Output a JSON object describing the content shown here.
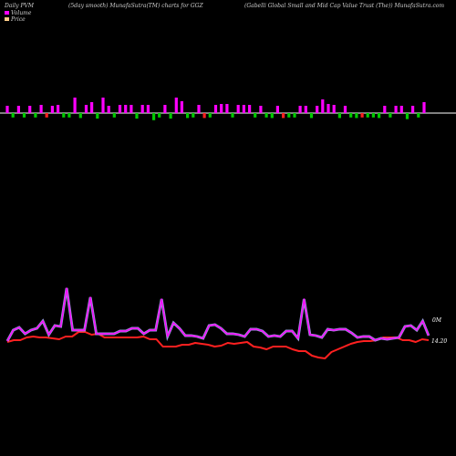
{
  "header": {
    "t1": "Daily PVM",
    "t2": "(5day smooth) MunafaSutra(TM) charts for GGZ",
    "t3": "(Gabelli  Global Small and Mid Cap Value  Trust    (The)) MunafaSutra.com"
  },
  "legend": [
    {
      "label": "Volume",
      "color": "#ff00ff"
    },
    {
      "label": "Price",
      "color": "#ffcc88"
    }
  ],
  "colors": {
    "up": "#ff00ff",
    "down": "#00cc00",
    "price": "#ff2020",
    "pvm": "#ff00ff",
    "pvm_fill": "#9999dd",
    "axis": "#ffffff"
  },
  "chart_data": [
    {
      "type": "bar",
      "name": "PVM bars",
      "values": [
        8,
        8,
        8,
        8,
        8,
        8,
        9,
        8,
        8,
        9,
        8,
        8,
        17,
        9,
        9,
        12,
        10,
        17,
        8,
        8,
        9,
        9,
        9,
        10,
        9,
        9,
        13,
        8,
        9,
        10,
        17,
        13,
        9,
        8,
        9,
        9,
        8,
        9,
        10,
        10,
        8,
        9,
        9,
        9,
        8,
        8,
        8,
        9,
        8,
        9,
        8,
        8,
        8,
        8,
        9,
        8,
        15,
        10,
        9,
        9,
        8,
        8,
        9,
        8,
        8,
        8,
        9,
        8,
        8,
        8,
        8,
        11,
        8,
        8,
        12
      ],
      "signs": [
        1,
        -1,
        1,
        -1,
        1,
        -1,
        1,
        -1,
        1,
        1,
        -1,
        -1,
        1,
        -1,
        1,
        1,
        -1,
        1,
        1,
        -1,
        1,
        1,
        1,
        -1,
        1,
        1,
        -1,
        -1,
        1,
        -1,
        1,
        1,
        -1,
        -1,
        1,
        -1,
        -1,
        1,
        1,
        1,
        -1,
        1,
        1,
        1,
        -1,
        1,
        -1,
        -1,
        1,
        -1,
        -1,
        -1,
        1,
        1,
        -1,
        1,
        1,
        1,
        1,
        -1,
        1,
        -1,
        -1,
        -1,
        -1,
        -1,
        -1,
        1,
        -1,
        1,
        1,
        -1,
        1,
        -1,
        1
      ]
    },
    {
      "type": "line",
      "name": "PVM",
      "values": [
        374,
        362,
        359,
        366,
        362,
        360,
        352,
        367,
        357,
        358,
        316,
        362,
        362,
        362,
        326,
        366,
        366,
        366,
        366,
        363,
        363,
        360,
        360,
        366,
        362,
        362,
        328,
        369,
        354,
        360,
        368,
        368,
        369,
        371,
        357,
        356,
        360,
        366,
        366,
        367,
        369,
        361,
        361,
        363,
        369,
        368,
        369,
        363,
        363,
        371,
        328,
        367,
        368,
        370,
        361,
        362,
        361,
        361,
        365,
        370,
        369,
        369,
        373,
        371,
        372,
        371,
        370,
        358,
        357,
        362,
        352,
        368
      ],
      "annotation": "0M"
    },
    {
      "type": "line",
      "name": "Price",
      "values": [
        375,
        373,
        373,
        370,
        369,
        370,
        370,
        371,
        372,
        369,
        369,
        364,
        364,
        367,
        366,
        370,
        370,
        370,
        370,
        370,
        370,
        369,
        372,
        372,
        380,
        380,
        380,
        378,
        378,
        376,
        377,
        378,
        380,
        379,
        376,
        377,
        376,
        375,
        380,
        381,
        383,
        380,
        380,
        380,
        383,
        385,
        385,
        390,
        392,
        393,
        386,
        383,
        380,
        377,
        375,
        374,
        374,
        373,
        370,
        370,
        370,
        373,
        373,
        375,
        372,
        373
      ],
      "annotation": "14.20"
    }
  ]
}
